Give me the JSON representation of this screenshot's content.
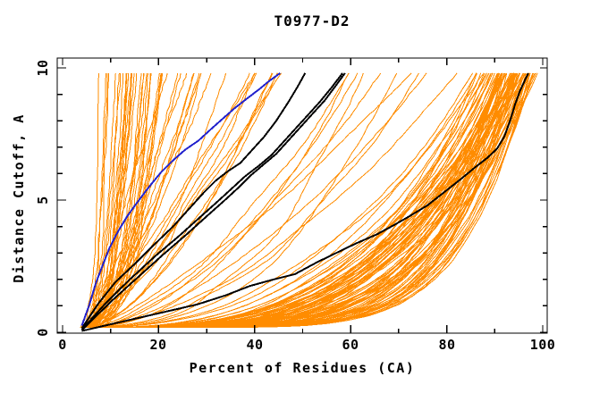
{
  "chart_data": {
    "type": "line",
    "title": "T0977-D2",
    "xlabel": "Percent of Residues (CA)",
    "ylabel": "Distance Cutoff, A",
    "xlim": [
      0,
      100
    ],
    "ylim": [
      0,
      10
    ],
    "x_tick_labels": [
      "0",
      "20",
      "40",
      "60",
      "80",
      "100"
    ],
    "x_major_values": [
      0,
      20,
      40,
      60,
      80,
      100
    ],
    "x_minor_step": 10,
    "y_tick_labels": [
      "0",
      "5",
      "10"
    ],
    "y_major_values": [
      0,
      5,
      10
    ],
    "y_minor_step": 1,
    "grid": false,
    "legend": "none",
    "colors": {
      "model_orange": "#ff8c00",
      "highlight_black": "#000000",
      "highlight_blue": "#2323cd",
      "frame": "#000000",
      "background": "#ffffff"
    },
    "curve_y_start": 0.18,
    "curve_y_end": 9.8,
    "seed": 7,
    "orange_families": [
      {
        "name": "left-fan-vertical",
        "count": 30,
        "xs": [
          3.6,
          5.2
        ],
        "xe": [
          7.5,
          21
        ],
        "q": [
          2.0,
          4.0
        ],
        "amp": [
          0.3,
          0.9
        ]
      },
      {
        "name": "left-fan-diagonal",
        "count": 20,
        "xs": [
          3.6,
          5.5
        ],
        "xe": [
          21,
          48
        ],
        "q": [
          1.0,
          1.9
        ],
        "amp": [
          0.5,
          1.4
        ]
      },
      {
        "name": "middle-sparse",
        "count": 12,
        "xs": [
          4.0,
          6.0
        ],
        "xe": [
          58,
          88
        ],
        "q": [
          1.3,
          2.6
        ],
        "amp": [
          0.8,
          2.0
        ]
      },
      {
        "name": "right-bundle-fast",
        "count": 55,
        "xs": [
          3.6,
          6.0
        ],
        "xe": [
          90,
          99
        ],
        "q": [
          3.5,
          7.0
        ],
        "amp": [
          0.8,
          2.0
        ]
      },
      {
        "name": "right-bundle-slow",
        "count": 30,
        "xs": [
          4.0,
          7.0
        ],
        "xe": [
          86,
          96.5
        ],
        "q": [
          2.6,
          4.0
        ],
        "amp": [
          1.0,
          2.4
        ]
      }
    ],
    "highlight_curves": [
      {
        "name": "black-model-shallow",
        "color": "#000000",
        "width": 2,
        "points": [
          [
            4,
            0.05
          ],
          [
            10,
            0.3
          ],
          [
            16,
            0.55
          ],
          [
            22,
            0.8
          ],
          [
            28,
            1.05
          ],
          [
            34,
            1.4
          ],
          [
            39,
            1.75
          ],
          [
            44,
            2.0
          ],
          [
            48.4,
            2.2
          ],
          [
            53,
            2.65
          ],
          [
            57,
            3.0
          ],
          [
            61,
            3.35
          ],
          [
            65.4,
            3.7
          ],
          [
            69,
            4.05
          ],
          [
            72,
            4.36
          ],
          [
            76,
            4.8
          ],
          [
            79.5,
            5.3
          ],
          [
            83,
            5.8
          ],
          [
            86,
            6.25
          ],
          [
            88.5,
            6.6
          ],
          [
            90.5,
            6.95
          ],
          [
            92,
            7.4
          ],
          [
            93.2,
            8.0
          ],
          [
            94.2,
            8.6
          ],
          [
            95.2,
            9.1
          ],
          [
            96.2,
            9.5
          ],
          [
            97,
            9.8
          ]
        ]
      },
      {
        "name": "black-model-a",
        "color": "#000000",
        "width": 2,
        "points": [
          [
            4,
            0.15
          ],
          [
            7.5,
            1.1
          ],
          [
            11,
            1.9
          ],
          [
            15.7,
            2.7
          ],
          [
            19,
            3.3
          ],
          [
            23,
            4.0
          ],
          [
            26.5,
            4.7
          ],
          [
            29.5,
            5.3
          ],
          [
            32,
            5.75
          ],
          [
            34.5,
            6.1
          ],
          [
            37,
            6.4
          ],
          [
            39.5,
            6.9
          ],
          [
            42,
            7.4
          ],
          [
            44.5,
            8.0
          ],
          [
            47,
            8.7
          ],
          [
            49,
            9.3
          ],
          [
            50.5,
            9.8
          ]
        ]
      },
      {
        "name": "black-model-b1",
        "color": "#000000",
        "width": 2,
        "points": [
          [
            4,
            0.1
          ],
          [
            9,
            1.1
          ],
          [
            14,
            2.0
          ],
          [
            19.4,
            2.9
          ],
          [
            24,
            3.6
          ],
          [
            28.3,
            4.3
          ],
          [
            32,
            4.9
          ],
          [
            35,
            5.4
          ],
          [
            38,
            5.9
          ],
          [
            40.9,
            6.3
          ],
          [
            43.5,
            6.7
          ],
          [
            46,
            7.2
          ],
          [
            48.5,
            7.7
          ],
          [
            51,
            8.2
          ],
          [
            53.5,
            8.7
          ],
          [
            56,
            9.25
          ],
          [
            58.3,
            9.8
          ]
        ]
      },
      {
        "name": "black-model-b2",
        "color": "#000000",
        "width": 2,
        "points": [
          [
            4,
            0.07
          ],
          [
            10,
            1.15
          ],
          [
            15.5,
            2.05
          ],
          [
            21,
            2.95
          ],
          [
            25.5,
            3.65
          ],
          [
            29.8,
            4.35
          ],
          [
            33.5,
            4.95
          ],
          [
            36.5,
            5.45
          ],
          [
            39.3,
            5.95
          ],
          [
            41.9,
            6.35
          ],
          [
            44.5,
            6.75
          ],
          [
            47,
            7.25
          ],
          [
            49.5,
            7.75
          ],
          [
            52,
            8.25
          ],
          [
            54.5,
            8.75
          ],
          [
            56.8,
            9.3
          ],
          [
            58.8,
            9.8
          ]
        ]
      },
      {
        "name": "blue-model",
        "color": "#2323cd",
        "width": 2,
        "points": [
          [
            4,
            0.25
          ],
          [
            5.5,
            1.0
          ],
          [
            7,
            1.9
          ],
          [
            8.5,
            2.6
          ],
          [
            9.8,
            3.2
          ],
          [
            11.5,
            3.8
          ],
          [
            13.5,
            4.4
          ],
          [
            15.5,
            4.9
          ],
          [
            18,
            5.5
          ],
          [
            20.5,
            6.05
          ],
          [
            23,
            6.5
          ],
          [
            25.5,
            6.9
          ],
          [
            28.3,
            7.25
          ],
          [
            31,
            7.7
          ],
          [
            33.5,
            8.1
          ],
          [
            36,
            8.5
          ],
          [
            38.5,
            8.85
          ],
          [
            41,
            9.2
          ],
          [
            43,
            9.5
          ],
          [
            45.3,
            9.8
          ]
        ]
      }
    ]
  }
}
